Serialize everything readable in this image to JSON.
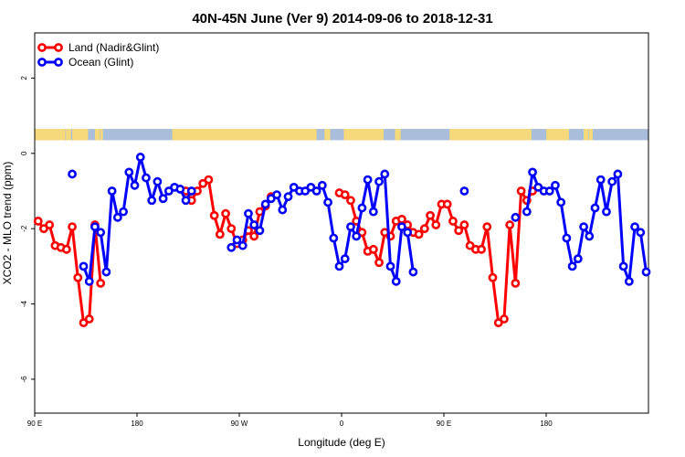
{
  "chart_data": {
    "type": "line",
    "title": "40N-45N June (Ver 9)   2014-09-06 to 2018-12-31",
    "xlabel": "Longitude (deg E)",
    "ylabel": "XCO2 - MLO trend (ppm)",
    "xlim": [
      90,
      630
    ],
    "ylim": [
      -6.9,
      3.2
    ],
    "x_ticks": [
      {
        "value": 90,
        "label": "90 E"
      },
      {
        "value": 180,
        "label": "180"
      },
      {
        "value": 270,
        "label": "90 W"
      },
      {
        "value": 360,
        "label": "0"
      },
      {
        "value": 450,
        "label": "90 E"
      },
      {
        "value": 540,
        "label": "180"
      }
    ],
    "y_ticks": [
      {
        "value": 2,
        "label": "2"
      },
      {
        "value": 0,
        "label": "0"
      },
      {
        "value": -2,
        "label": "-2"
      },
      {
        "value": -4,
        "label": "-4"
      },
      {
        "value": -6,
        "label": "-6"
      }
    ],
    "legend": {
      "position": "top-left"
    },
    "land_ocean_strip": {
      "y_top": 0.65,
      "y_bottom": 0.35,
      "land_color": "#f5d97a",
      "ocean_color": "#a9bedb",
      "land_ranges": [
        [
          90,
          117
        ],
        [
          117.5,
          122
        ],
        [
          123,
          137
        ],
        [
          143,
          147
        ],
        [
          147.5,
          150
        ],
        [
          211,
          338
        ],
        [
          345,
          350
        ],
        [
          362,
          397
        ],
        [
          407,
          412
        ],
        [
          455,
          527
        ],
        [
          540,
          557
        ],
        [
          556.5,
          560
        ],
        [
          573,
          577
        ],
        [
          577.5,
          581
        ]
      ]
    },
    "series": [
      {
        "name": "Land (Nadir&Glint)",
        "color": "#ff0000",
        "x": [
          93,
          98,
          103,
          108,
          113,
          118,
          123,
          128,
          133,
          138,
          143,
          148,
          223,
          228,
          233,
          238,
          243,
          248,
          253,
          258,
          263,
          268,
          273,
          278,
          283,
          288,
          293,
          298,
          358,
          363,
          368,
          373,
          378,
          383,
          388,
          393,
          398,
          403,
          408,
          413,
          418,
          423,
          428,
          433,
          438,
          443,
          448,
          453,
          458,
          463,
          468,
          473,
          478,
          483,
          488,
          493,
          498,
          503,
          508,
          513,
          518,
          523,
          528
        ],
        "y": [
          -1.8,
          -2.0,
          -1.9,
          -2.45,
          -2.5,
          -2.55,
          -1.95,
          -3.3,
          -4.5,
          -4.4,
          -1.9,
          -3.45,
          -1.0,
          -1.25,
          -1.0,
          -0.8,
          -0.7,
          -1.65,
          -2.15,
          -1.6,
          -2.0,
          -2.4,
          -2.3,
          -2.05,
          -2.2,
          -1.55,
          -1.4,
          -1.15,
          -1.05,
          -1.1,
          -1.25,
          -1.8,
          -2.1,
          -2.6,
          -2.55,
          -2.9,
          -2.1,
          -2.2,
          -1.8,
          -1.75,
          -1.9,
          -2.1,
          -2.15,
          -2.0,
          -1.65,
          -1.9,
          -1.35,
          -1.35,
          -1.8,
          -2.05,
          -1.9,
          -2.45,
          -2.55,
          -2.55,
          -1.95,
          -3.3,
          -4.5,
          -4.4,
          -1.9,
          -3.45,
          -1.0,
          -1.25,
          -1.0
        ]
      },
      {
        "name": "Ocean (Glint)",
        "color": "#0000ff",
        "x": [
          123,
          133,
          138,
          143,
          148,
          153,
          158,
          163,
          168,
          173,
          178,
          183,
          188,
          193,
          198,
          203,
          208,
          213,
          218,
          223,
          228,
          263,
          268,
          273,
          278,
          283,
          288,
          293,
          298,
          303,
          308,
          313,
          318,
          323,
          328,
          333,
          338,
          343,
          348,
          353,
          358,
          363,
          368,
          373,
          378,
          383,
          388,
          393,
          398,
          403,
          408,
          413,
          418,
          423,
          468,
          513,
          523,
          528,
          533,
          538,
          543,
          548,
          553,
          558,
          563,
          568,
          573,
          578,
          583,
          588,
          593,
          598,
          603,
          608,
          613,
          618,
          623,
          628
        ],
        "y": [
          -0.55,
          -3.0,
          -3.4,
          -1.95,
          -2.1,
          -3.15,
          -1.0,
          -1.7,
          -1.55,
          -0.5,
          -0.85,
          -0.1,
          -0.65,
          -1.25,
          -0.75,
          -1.2,
          -1.0,
          -0.9,
          -0.95,
          -1.25,
          -1.0,
          -2.5,
          -2.3,
          -2.45,
          -1.6,
          -1.9,
          -2.05,
          -1.35,
          -1.2,
          -1.1,
          -1.5,
          -1.15,
          -0.9,
          -1.0,
          -1.0,
          -0.9,
          -1.0,
          -0.85,
          -1.3,
          -2.25,
          -3.0,
          -2.8,
          -1.95,
          -2.2,
          -1.45,
          -0.7,
          -1.55,
          -0.75,
          -0.55,
          -3.0,
          -3.4,
          -1.95,
          -2.1,
          -3.15,
          -1.0,
          -1.7,
          -1.55,
          -0.5,
          -0.9,
          -1.0,
          -1.0,
          -0.85,
          -1.3,
          -2.25,
          -3.0,
          -2.8,
          -1.95,
          -2.2,
          -1.45,
          -0.7,
          -1.55,
          -0.75,
          -0.55,
          -3.0,
          -3.4,
          -1.95,
          -2.1,
          -3.15
        ]
      }
    ]
  }
}
